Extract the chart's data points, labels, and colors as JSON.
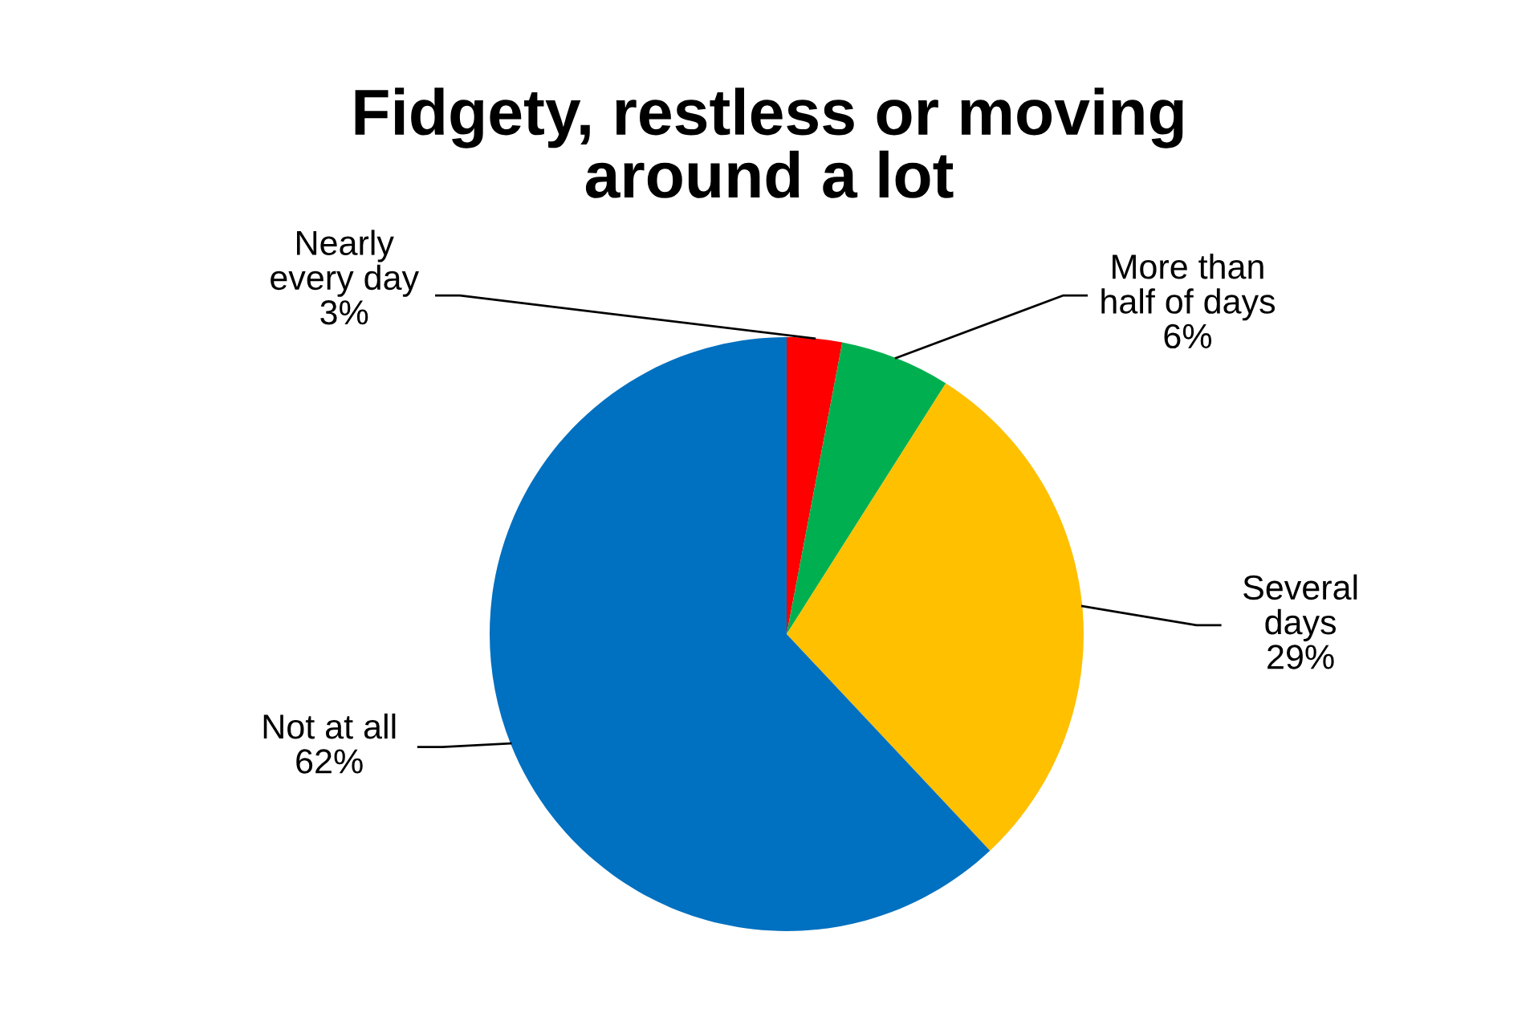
{
  "chart_data": {
    "type": "pie",
    "title": "Fidgety, restless or moving\naround a lot",
    "categories": [
      "Nearly\nevery day",
      "More than\nhalf of days",
      "Several\ndays",
      "Not at all"
    ],
    "values": [
      3,
      6,
      29,
      62
    ],
    "value_labels": [
      "3%",
      "6%",
      "29%",
      "62%"
    ],
    "colors": [
      "#ff0000",
      "#00b050",
      "#ffc000",
      "#0070c0"
    ],
    "legend": false
  }
}
